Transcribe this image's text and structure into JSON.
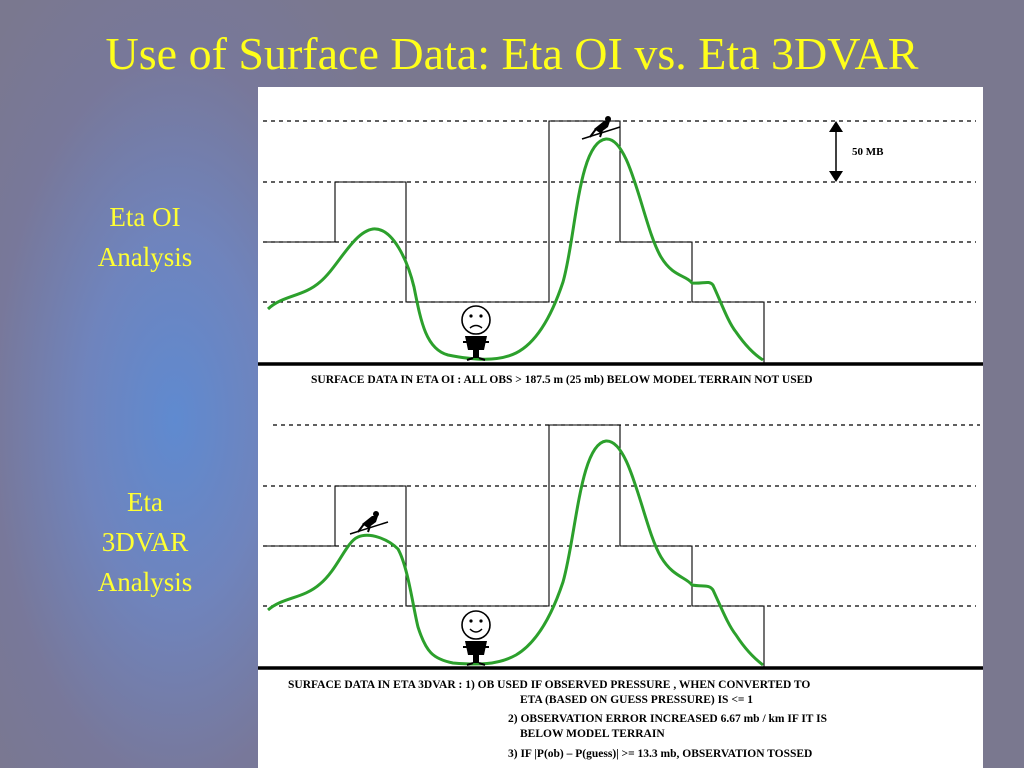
{
  "title": "Use of Surface Data: Eta OI vs. Eta 3DVAR",
  "labels": {
    "oi": [
      "Eta OI",
      "Analysis"
    ],
    "tdvar": [
      "Eta",
      "3DVAR",
      "Analysis"
    ]
  },
  "diagram": {
    "scale_label": "50 MB",
    "oi_caption": "SURFACE DATA IN ETA OI : ALL OBS > 187.5 m (25 mb) BELOW MODEL TERRAIN NOT USED",
    "tdvar_caption_lines": [
      "SURFACE DATA IN ETA 3DVAR : 1) OB USED IF OBSERVED PRESSURE , WHEN CONVERTED TO",
      "ETA (BASED ON GUESS PRESSURE) IS <= 1",
      "2) OBSERVATION ERROR INCREASED  6.67 mb / km IF IT IS",
      "BELOW MODEL TERRAIN",
      "3) IF |P(ob) – P(guess)| >= 13.3 mb, OBSERVATION TOSSED"
    ],
    "colors": {
      "terrain_curve": "#2ca02c",
      "step_terrain": "#000000",
      "title": "#ffff1a"
    }
  }
}
